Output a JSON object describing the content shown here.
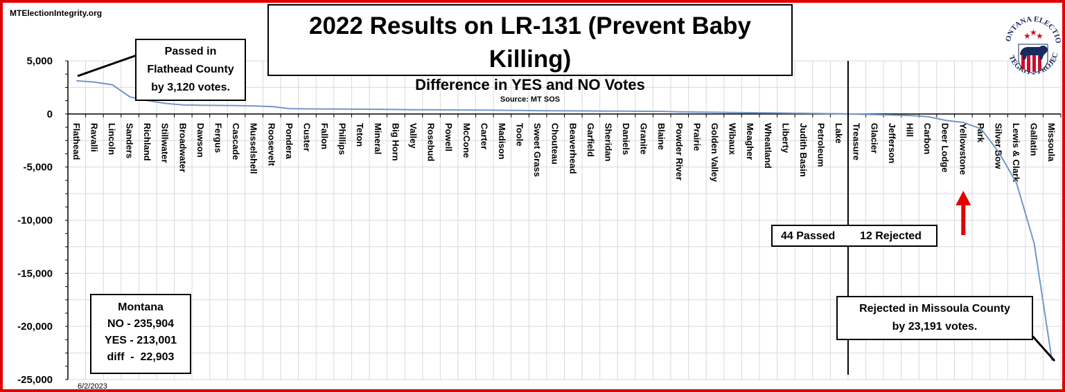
{
  "site": "MTElectionIntegrity.org",
  "date": "6/2/2023",
  "colors": {
    "frame": "#e00000",
    "line": "#7396c8",
    "arrow": "#e00000",
    "grid": "#d9d9d9"
  },
  "chart_data": {
    "type": "line",
    "title": "2022 Results on LR-131 (Prevent Baby Killing)",
    "subtitle": "Difference in YES and NO Votes",
    "source": "Source: MT SOS",
    "xlabel": "",
    "ylabel": "",
    "ylim": [
      -25000,
      5000
    ],
    "yticks": [
      5000,
      0,
      -5000,
      -10000,
      -15000,
      -20000,
      -25000
    ],
    "ytick_labels": [
      "5,000",
      "0",
      "-5,000",
      "-10,000",
      "-15,000",
      "-20,000",
      "-25,000"
    ],
    "grid": true,
    "categories": [
      "Flathead",
      "Ravalli",
      "Lincoln",
      "Sanders",
      "Richland",
      "Stillwater",
      "Broadwater",
      "Dawson",
      "Fergus",
      "Cascade",
      "Musselshell",
      "Roosevelt",
      "Pondera",
      "Custer",
      "Fallon",
      "Phillips",
      "Teton",
      "Mineral",
      "Big Horn",
      "Valley",
      "Rosebud",
      "Powell",
      "McCone",
      "Carter",
      "Madison",
      "Toole",
      "Sweet Grass",
      "Chouteau",
      "Beaverhead",
      "Garfield",
      "Sheridan",
      "Daniels",
      "Granite",
      "Blaine",
      "Powder River",
      "Prairie",
      "Golden Valley",
      "Wibaux",
      "Meagher",
      "Wheatland",
      "Liberty",
      "Judith Basin",
      "Petroleum",
      "Lake",
      "Treasure",
      "Glacier",
      "Jefferson",
      "Hill",
      "Carbon",
      "Deer Lodge",
      "Yellowstone",
      "Park",
      "Silver Bow",
      "Lewis & Clark",
      "Gallatin",
      "Missoula"
    ],
    "series": [
      {
        "values": [
          3120,
          3000,
          2750,
          1600,
          1250,
          1000,
          850,
          820,
          800,
          780,
          760,
          700,
          500,
          480,
          470,
          460,
          450,
          440,
          420,
          400,
          390,
          380,
          370,
          360,
          350,
          330,
          310,
          300,
          290,
          280,
          270,
          260,
          250,
          240,
          200,
          180,
          160,
          140,
          120,
          100,
          80,
          60,
          40,
          20,
          -20,
          -60,
          -100,
          -150,
          -250,
          -600,
          -800,
          -1400,
          -3600,
          -6500,
          -12200,
          -23191
        ]
      }
    ],
    "annotations": {
      "flathead": [
        "Passed in",
        "Flathead County",
        "by 3,120 votes."
      ],
      "missoula": [
        "Rejected in Missoula County",
        "by 23,191 votes."
      ],
      "passed": "44 Passed",
      "rejected": "12 Rejected",
      "montana": [
        "Montana",
        "NO - 235,904",
        "YES - 213,001",
        "diff  -  22,903"
      ]
    }
  },
  "logo": {
    "text": "MONTANA ELECTION INTEGRITY PROJECT",
    "icon": "bear-shield-icon"
  }
}
